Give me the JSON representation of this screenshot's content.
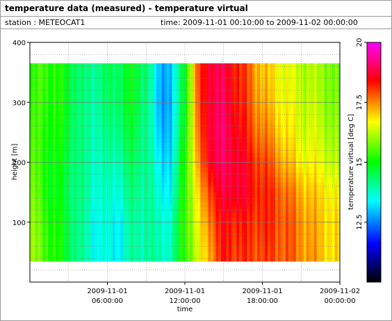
{
  "header": {
    "title": "temperature data (measured) - temperature virtual",
    "station": "station : METEOCAT1",
    "timerange": "time: 2009-11-01 00:10:00 to 2009-11-02 00:00:00"
  },
  "chart_data": {
    "type": "heatmap",
    "xlabel": "time",
    "ylabel": "height [m]",
    "colorbar_label": "temperature virtual [deg C]",
    "x_ticks": [
      {
        "hours": 6,
        "line1": "2009-11-01",
        "line2": "06:00:00"
      },
      {
        "hours": 12,
        "line1": "2009-11-01",
        "line2": "12:00:00"
      },
      {
        "hours": 18,
        "line1": "2009-11-01",
        "line2": "18:00:00"
      },
      {
        "hours": 24,
        "line1": "2009-11-02",
        "line2": "00:00:00"
      }
    ],
    "xlim_hours": [
      0,
      24
    ],
    "y_ticks": [
      100,
      200,
      300,
      400
    ],
    "ylim": [
      0,
      400
    ],
    "data_height_range": [
      35,
      365
    ],
    "colorbar_ticks": [
      12.5,
      15,
      17.5,
      20
    ],
    "colorbar_range": [
      10,
      20
    ],
    "colormap": [
      "#000000",
      "#0000ff",
      "#00ffff",
      "#00ff00",
      "#ffff00",
      "#ff0000",
      "#ff00ff"
    ],
    "grid": true,
    "time_hours": [
      0,
      1,
      2,
      3,
      4,
      5,
      6,
      7,
      8,
      9,
      10,
      11,
      12,
      13,
      14,
      15,
      16,
      17,
      18,
      19,
      20,
      21,
      22,
      23,
      24
    ],
    "heights": [
      50,
      100,
      150,
      200,
      250,
      300,
      350
    ],
    "temperature": [
      [
        16.0,
        15.6,
        15.2,
        14.6,
        14.0,
        13.6,
        13.4,
        13.5,
        14.0,
        14.0,
        13.9,
        13.8,
        15.5,
        16.3,
        17.5,
        18.3,
        18.1,
        18.0,
        18.0,
        17.9,
        17.8,
        17.5,
        17.3,
        17.0,
        16.8
      ],
      [
        16.0,
        15.5,
        15.1,
        14.6,
        14.0,
        13.6,
        13.5,
        13.5,
        14.0,
        14.0,
        13.8,
        13.7,
        15.6,
        16.5,
        17.8,
        18.4,
        18.3,
        18.1,
        18.2,
        18.0,
        17.8,
        17.5,
        17.2,
        17.0,
        16.8
      ],
      [
        15.8,
        15.3,
        14.9,
        14.5,
        14.1,
        13.8,
        13.6,
        13.8,
        14.2,
        14.1,
        13.6,
        13.4,
        15.5,
        16.8,
        18.2,
        18.7,
        18.8,
        18.4,
        18.2,
        18.0,
        17.6,
        17.3,
        17.0,
        16.9,
        16.5
      ],
      [
        15.6,
        15.2,
        15.0,
        14.6,
        14.1,
        13.9,
        13.8,
        14.1,
        14.4,
        14.2,
        13.3,
        13.2,
        15.4,
        17.2,
        18.8,
        18.9,
        18.8,
        18.3,
        18.0,
        17.6,
        17.1,
        16.8,
        16.6,
        16.5,
        16.0
      ],
      [
        15.4,
        15.3,
        15.1,
        14.7,
        14.1,
        14.0,
        14.0,
        14.4,
        14.6,
        14.2,
        13.0,
        13.0,
        15.2,
        17.5,
        18.9,
        19.0,
        18.6,
        18.0,
        17.6,
        17.2,
        16.8,
        16.5,
        16.4,
        16.2,
        15.8
      ],
      [
        15.2,
        15.4,
        15.2,
        14.8,
        14.1,
        14.1,
        14.2,
        14.6,
        14.8,
        14.3,
        12.8,
        12.9,
        15.0,
        17.7,
        18.9,
        18.9,
        18.4,
        17.8,
        17.3,
        16.9,
        16.6,
        16.4,
        16.2,
        16.0,
        15.6
      ],
      [
        15.0,
        15.5,
        15.2,
        14.8,
        14.2,
        14.2,
        14.3,
        14.6,
        14.8,
        14.4,
        12.9,
        13.0,
        15.0,
        17.8,
        18.9,
        18.8,
        18.3,
        17.7,
        17.1,
        16.8,
        16.5,
        16.3,
        16.1,
        16.0,
        15.5
      ]
    ]
  }
}
